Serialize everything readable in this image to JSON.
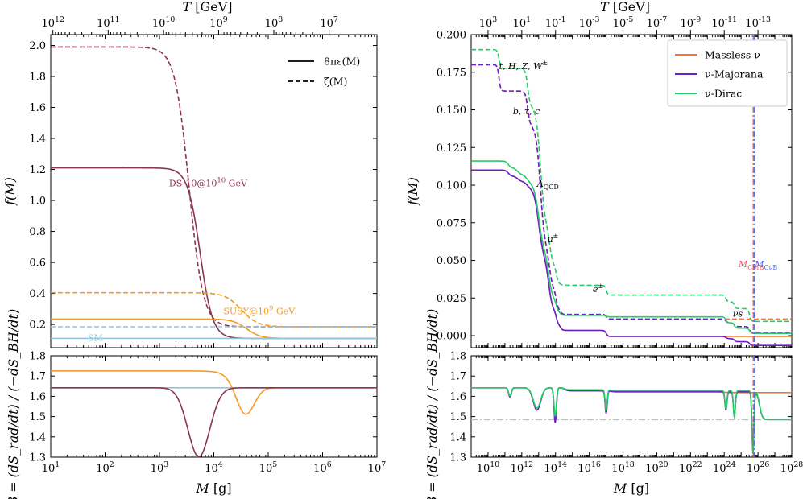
{
  "colors": {
    "ds": "#8b3556",
    "susy": "#f39c24",
    "sm": "#8ec8dd",
    "massless": "#ee7733",
    "majorana": "#6a1fc9",
    "dirac": "#22cc66",
    "cmb": "#ee5566",
    "cnub": "#4466ee",
    "ref": "#bbbbbb"
  },
  "chart_data": [
    {
      "id": "left-top",
      "type": "line",
      "xlabel": "M [g]",
      "ylabel": "f(M)",
      "top_label": "T [GeV]",
      "xscale": "log",
      "xlim": [
        10.0,
        10000000.0
      ],
      "ylim": [
        0.05,
        2.07
      ],
      "top_ticks": [
        {
          "label": "10^12",
          "x": 10.96
        },
        {
          "label": "10^11",
          "x": 114
        },
        {
          "label": "10^10",
          "x": 1191
        },
        {
          "label": "10^9",
          "x": 12260
        },
        {
          "label": "10^8",
          "x": 127000
        },
        {
          "label": "10^7",
          "x": 1320000
        }
      ],
      "yticks": [
        0.2,
        0.4,
        0.6,
        0.8,
        1.0,
        1.2,
        1.4,
        1.6,
        1.8,
        2.0
      ],
      "legend": {
        "position": "top-right",
        "entries": [
          {
            "label": "8πε(M)",
            "style": "solid"
          },
          {
            "label": "ζ(M)",
            "style": "dashed"
          }
        ]
      },
      "series": [
        {
          "name": "DS-10@10^10 GeV ε",
          "color_key": "ds",
          "dash": false,
          "type": "sigmoid",
          "high": 1.21,
          "low": 0.11,
          "center": 5600,
          "width": 0.115
        },
        {
          "name": "DS-10@10^10 GeV ζ",
          "color_key": "ds",
          "dash": true,
          "type": "sigmoid",
          "high": 1.99,
          "low": 0.185,
          "center": 3500,
          "width": 0.13
        },
        {
          "name": "SUSY@10^9 GeV ε",
          "color_key": "susy",
          "dash": false,
          "type": "sigmoid",
          "high": 0.235,
          "low": 0.11,
          "center": 40000,
          "width": 0.13
        },
        {
          "name": "SUSY@10^9 GeV ζ",
          "color_key": "susy",
          "dash": true,
          "type": "sigmoid",
          "high": 0.405,
          "low": 0.185,
          "center": 32000,
          "width": 0.15
        },
        {
          "name": "SM ε",
          "color_key": "sm",
          "dash": false,
          "type": "const",
          "value": 0.11
        },
        {
          "name": "SM ζ",
          "color_key": "sm",
          "dash": true,
          "type": "const",
          "value": 0.185
        }
      ],
      "annotations": [
        {
          "text": "DS-10@10",
          "sup": "10",
          "suffix": " GeV",
          "x": 1500,
          "y": 1.09,
          "color_key": "ds"
        },
        {
          "text": "SUSY@10",
          "sup": "9",
          "suffix": " GeV",
          "x": 15000,
          "y": 0.265,
          "color_key": "susy"
        },
        {
          "text": "SM",
          "sup": "",
          "suffix": "",
          "x": 48,
          "y": 0.095,
          "color_key": "sm"
        }
      ]
    },
    {
      "id": "left-bottom",
      "type": "line",
      "xlabel": "M [g]",
      "ylabel": "β = (dS_rad/dt) / (−dS_BH/dt)",
      "xscale": "log",
      "xlim": [
        10.0,
        10000000.0
      ],
      "ylim": [
        1.3,
        1.8
      ],
      "xticks": [
        10.0,
        100.0,
        1000.0,
        10000.0,
        100000.0,
        1000000.0,
        10000000.0
      ],
      "xtick_labels": [
        "10^1",
        "10^2",
        "10^3",
        "10^4",
        "10^5",
        "10^6",
        "10^7"
      ],
      "yticks": [
        1.3,
        1.4,
        1.5,
        1.6,
        1.7,
        1.8
      ],
      "series": [
        {
          "name": "SM",
          "color_key": "sm",
          "type": "const",
          "value": 1.642
        },
        {
          "name": "SUSY@10^9 GeV",
          "color_key": "susy",
          "type": "sigdip",
          "high": 1.725,
          "low": 1.642,
          "center": 22000,
          "width": 0.12,
          "dip_depth": 0.14,
          "dip_center": 38000,
          "dip_width": 0.16
        },
        {
          "name": "DS-10@10^10 GeV",
          "color_key": "ds",
          "type": "dip",
          "base": 1.642,
          "dip_depth": 0.34,
          "dip_center": 5300,
          "dip_width": 0.2
        }
      ]
    },
    {
      "id": "right-top",
      "type": "line",
      "xlabel": "M [g]",
      "ylabel": "f(M)",
      "top_label": "T [GeV]",
      "xscale": "log",
      "xlim": [
        1000000000.0,
        1e+28
      ],
      "ylim": [
        -0.008,
        0.2
      ],
      "top_ticks": [
        {
          "label": "10^3",
          "x": 10000000000.0
        },
        {
          "label": "10^1",
          "x": 1000000000000.0
        },
        {
          "label": "10^-1",
          "x": 100000000000000.0
        },
        {
          "label": "10^-3",
          "x": 1e+16
        },
        {
          "label": "10^-5",
          "x": 1e+18
        },
        {
          "label": "10^-7",
          "x": 1e+20
        },
        {
          "label": "10^-9",
          "x": 1e+22
        },
        {
          "label": "10^-11",
          "x": 1e+24
        },
        {
          "label": "10^-13",
          "x": 1e+26
        }
      ],
      "yticks": [
        0.0,
        0.025,
        0.05,
        0.075,
        0.1,
        0.125,
        0.15,
        0.175,
        0.2
      ],
      "ytick_labels": [
        "0.000",
        "0.025",
        "0.050",
        "0.075",
        "0.100",
        "0.125",
        "0.150",
        "0.175",
        "0.200"
      ],
      "legend": {
        "position": "top-right",
        "entries": [
          {
            "label": "Massless ν",
            "color_key": "massless"
          },
          {
            "label": "ν-Majorana",
            "color_key": "majorana"
          },
          {
            "label": "ν-Dirac",
            "color_key": "dirac"
          }
        ]
      },
      "vlines": [
        {
          "label": "M_CMB",
          "x": 5.2e+25,
          "color_key": "cmb"
        },
        {
          "label": "M_CνB",
          "x": 5.9e+25,
          "color_key": "cnub"
        }
      ],
      "series": [
        {
          "name": "Massless ν ε",
          "color_key": "massless",
          "dash": false,
          "start": 0.11,
          "steps": [
            [
              11.2,
              -0.004,
              0.08
            ],
            [
              11.75,
              -0.0035,
              0.1
            ],
            [
              12.3,
              -0.004,
              0.1
            ],
            [
              13.0,
              -0.0475,
              0.14
            ],
            [
              13.6,
              -0.035,
              0.11
            ],
            [
              14.05,
              -0.009,
              0.06
            ],
            [
              14.3,
              -0.0035,
              0.06
            ],
            [
              17.0,
              -0.004,
              0.05
            ]
          ],
          "tail": {
            "at": 24.0,
            "to": 0.007
          }
        },
        {
          "name": "Massless ν ζ",
          "color_key": "massless",
          "dash": true,
          "start": 0.18,
          "steps": [
            [
              10.65,
              -0.0175,
              0.05
            ],
            [
              12.35,
              -0.0225,
              0.07
            ],
            [
              13.1,
              -0.0825,
              0.13
            ],
            [
              13.65,
              -0.028,
              0.1
            ],
            [
              14.05,
              -0.0124,
              0.06
            ],
            [
              14.3,
              -0.003,
              0.06
            ],
            [
              17.0,
              -0.0031,
              0.05
            ]
          ],
          "tail": {
            "at": 24.0,
            "to": 0.011
          }
        },
        {
          "name": "ν-Majorana ε",
          "color_key": "majorana",
          "dash": false,
          "start": 0.11,
          "steps": [
            [
              11.2,
              -0.004,
              0.08
            ],
            [
              11.75,
              -0.0035,
              0.1
            ],
            [
              12.3,
              -0.004,
              0.1
            ],
            [
              13.0,
              -0.0475,
              0.14
            ],
            [
              13.6,
              -0.035,
              0.11
            ],
            [
              14.05,
              -0.009,
              0.06
            ],
            [
              14.3,
              -0.0035,
              0.06
            ],
            [
              17.0,
              -0.004,
              0.05
            ],
            [
              24.1,
              -0.0015,
              0.05
            ],
            [
              24.6,
              -0.002,
              0.05
            ],
            [
              25.5,
              -0.0025,
              0.05
            ]
          ]
        },
        {
          "name": "ν-Majorana ζ",
          "color_key": "majorana",
          "dash": true,
          "start": 0.18,
          "steps": [
            [
              10.65,
              -0.0175,
              0.05
            ],
            [
              12.35,
              -0.0225,
              0.07
            ],
            [
              13.1,
              -0.0825,
              0.13
            ],
            [
              13.65,
              -0.028,
              0.1
            ],
            [
              14.05,
              -0.0124,
              0.06
            ],
            [
              14.3,
              -0.003,
              0.06
            ],
            [
              17.0,
              -0.0031,
              0.05
            ],
            [
              24.1,
              -0.0025,
              0.05
            ],
            [
              24.6,
              -0.0025,
              0.05
            ],
            [
              25.5,
              -0.004,
              0.05
            ]
          ]
        },
        {
          "name": "ν-Dirac ε",
          "color_key": "dirac",
          "dash": false,
          "start": 0.116,
          "steps": [
            [
              11.2,
              -0.0045,
              0.08
            ],
            [
              11.75,
              -0.0045,
              0.1
            ],
            [
              12.3,
              -0.005,
              0.1
            ],
            [
              13.0,
              -0.046,
              0.14
            ],
            [
              13.6,
              -0.0325,
              0.11
            ],
            [
              14.05,
              -0.008,
              0.06
            ],
            [
              14.3,
              -0.002,
              0.06
            ],
            [
              17.0,
              -0.001,
              0.05
            ],
            [
              24.1,
              -0.004,
              0.05
            ],
            [
              24.6,
              -0.0035,
              0.05
            ],
            [
              25.5,
              -0.0035,
              0.05
            ]
          ]
        },
        {
          "name": "ν-Dirac ζ",
          "color_key": "dirac",
          "dash": true,
          "start": 0.19,
          "steps": [
            [
              10.65,
              -0.0125,
              0.05
            ],
            [
              12.35,
              -0.0245,
              0.07
            ],
            [
              13.1,
              -0.08,
              0.13
            ],
            [
              13.65,
              -0.027,
              0.1
            ],
            [
              14.05,
              -0.0115,
              0.06
            ],
            [
              14.3,
              -0.001,
              0.06
            ],
            [
              17.0,
              -0.0065,
              0.05
            ],
            [
              24.1,
              -0.0045,
              0.05
            ],
            [
              24.6,
              -0.0045,
              0.05
            ],
            [
              25.5,
              -0.0085,
              0.05
            ]
          ]
        }
      ],
      "annotations": [
        {
          "text": "t, H, Z, W",
          "sup": "±",
          "sub": "",
          "x": 45000000000.0,
          "y": 0.177
        },
        {
          "text": "b, τ, c",
          "sup": "",
          "sub": "",
          "x": 300000000000.0,
          "y": 0.147
        },
        {
          "text": "Λ",
          "sup": "",
          "sub": "QCD",
          "x": 8000000000000.0,
          "y": 0.099
        },
        {
          "text": "μ",
          "sup": "±",
          "sub": "",
          "x": 32000000000000.0,
          "y": 0.062
        },
        {
          "text": "e",
          "sup": "±",
          "sub": "",
          "x": 1.6e+16,
          "y": 0.029
        },
        {
          "text": "νs",
          "sup": "",
          "sub": "",
          "x": 3.2e+24,
          "y": 0.0125
        },
        {
          "text": "M",
          "sup": "",
          "sub": "CMB",
          "x": 7e+24,
          "y": 0.0455,
          "color_key": "cmb"
        },
        {
          "text": "M",
          "sup": "",
          "sub": "CνB",
          "x": 6.5e+25,
          "y": 0.0455,
          "color_key": "cnub"
        }
      ]
    },
    {
      "id": "right-bottom",
      "type": "line",
      "xlabel": "M [g]",
      "ylabel": "β = (dS_rad/dt) / (−dS_BH/dt)",
      "xscale": "log",
      "xlim": [
        1000000000.0,
        1e+28
      ],
      "ylim": [
        1.3,
        1.8
      ],
      "xticks": [
        10000000000.0,
        1000000000000.0,
        100000000000000.0,
        1e+16,
        1e+18,
        1e+20,
        1e+22,
        1e+24,
        1e+26,
        1e+28
      ],
      "xtick_labels": [
        "10^10",
        "10^12",
        "10^14",
        "10^16",
        "10^18",
        "10^20",
        "10^22",
        "10^24",
        "10^26",
        "10^28"
      ],
      "yticks": [
        1.3,
        1.4,
        1.5,
        1.6,
        1.7,
        1.8
      ],
      "hline": {
        "value": 1.485,
        "color_key": "ref",
        "style": "dashdot"
      },
      "vlines": [
        {
          "x": 5.2e+25,
          "color_key": "cmb"
        },
        {
          "x": 5.9e+25,
          "color_key": "cnub"
        }
      ],
      "series": [
        {
          "name": "Massless ν",
          "color_key": "massless",
          "base": 1.642,
          "dips": [
            [
              11.3,
              0.045,
              0.08
            ],
            [
              12.9,
              0.11,
              0.22
            ],
            [
              13.98,
              0.165,
              0.07
            ],
            [
              17.0,
              0.11,
              0.06
            ]
          ],
          "plateau": [
            [
              14.55,
              1.627
            ],
            [
              17.3,
              1.622
            ],
            [
              24.0,
              1.618
            ]
          ]
        },
        {
          "name": "ν-Majorana",
          "color_key": "majorana",
          "base": 1.642,
          "dips": [
            [
              11.3,
              0.045,
              0.08
            ],
            [
              12.9,
              0.11,
              0.22
            ],
            [
              13.98,
              0.17,
              0.07
            ],
            [
              17.0,
              0.11,
              0.06
            ],
            [
              24.1,
              0.09,
              0.06
            ],
            [
              24.6,
              0.12,
              0.06
            ],
            [
              25.7,
              0.27,
              0.06
            ]
          ],
          "plateau": [
            [
              14.55,
              1.627
            ],
            [
              17.3,
              1.622
            ],
            [
              26.1,
              1.485
            ]
          ]
        },
        {
          "name": "ν-Dirac",
          "color_key": "dirac",
          "base": 1.642,
          "dips": [
            [
              11.3,
              0.04,
              0.08
            ],
            [
              12.9,
              0.1,
              0.22
            ],
            [
              13.98,
              0.14,
              0.07
            ],
            [
              17.0,
              0.1,
              0.06
            ],
            [
              24.1,
              0.09,
              0.06
            ],
            [
              24.6,
              0.13,
              0.06
            ],
            [
              25.7,
              0.31,
              0.06
            ]
          ],
          "plateau": [
            [
              14.55,
              1.632
            ],
            [
              17.3,
              1.628
            ],
            [
              26.1,
              1.485
            ]
          ]
        }
      ]
    }
  ]
}
